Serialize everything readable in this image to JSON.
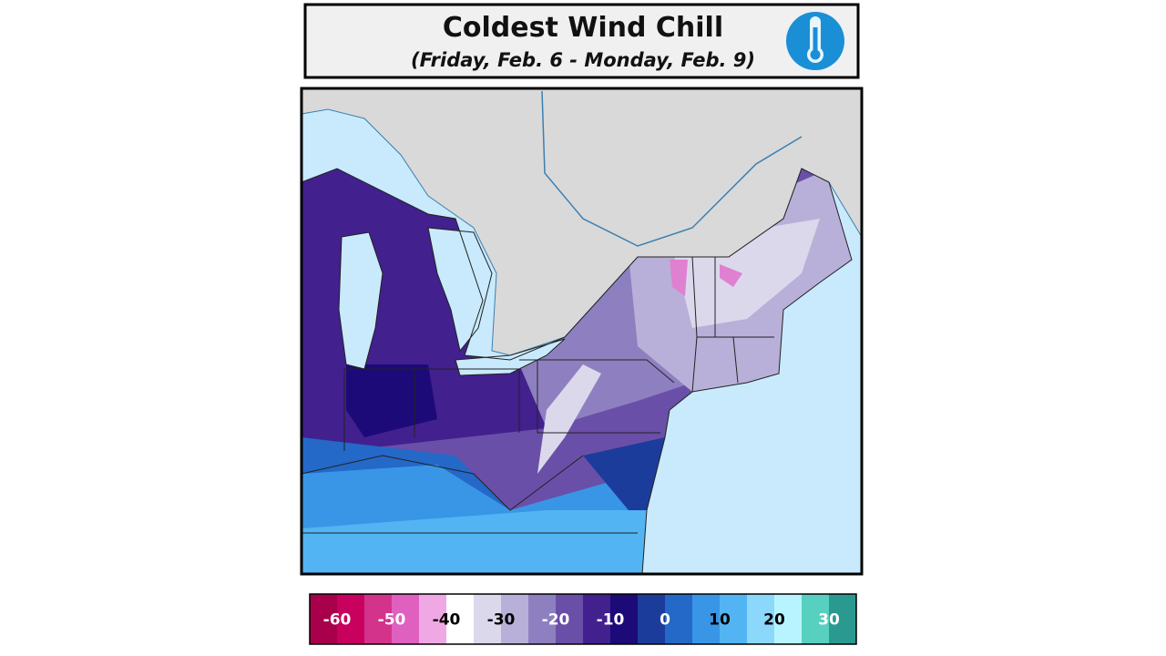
{
  "header": {
    "title": "Coldest Wind Chill",
    "subtitle": "(Friday, Feb. 6 - Monday, Feb. 9)"
  },
  "legend": {
    "ticks": [
      -60,
      -50,
      -40,
      -30,
      -20,
      -10,
      0,
      10,
      20,
      30
    ],
    "colors": [
      "#a8004a",
      "#c8005e",
      "#d4338c",
      "#e060c0",
      "#f0a8e4",
      "#ffffff",
      "#dcd8ec",
      "#b8b0d8",
      "#8e80c0",
      "#6a4fa8",
      "#42208e",
      "#1c0a78",
      "#1c3c9c",
      "#2468c8",
      "#3996e6",
      "#52b4f2",
      "#8cd8fa",
      "#b8f4ff",
      "#58d0c0",
      "#2a9a90"
    ]
  }
}
